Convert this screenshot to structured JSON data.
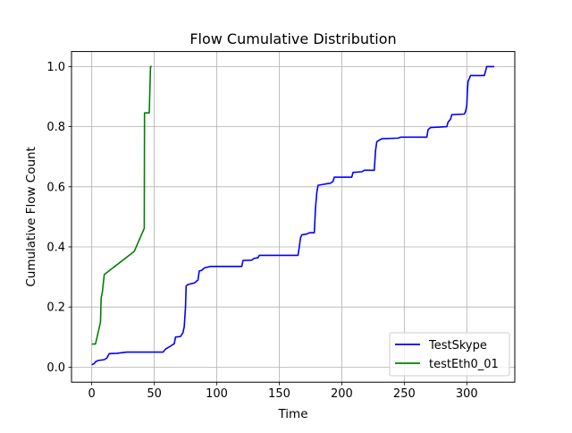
{
  "chart_data": {
    "type": "line",
    "title": "Flow Cumulative Distribution",
    "xlabel": "Time",
    "ylabel": "Cumulative Flow Count",
    "xlim": [
      -16.2,
      338.4
    ],
    "ylim": [
      -0.05,
      1.05
    ],
    "xticks": [
      0,
      50,
      100,
      150,
      200,
      250,
      300
    ],
    "yticks": [
      0.0,
      0.2,
      0.4,
      0.6,
      0.8,
      1.0
    ],
    "xtick_labels": [
      "0",
      "50",
      "100",
      "150",
      "200",
      "250",
      "300"
    ],
    "ytick_labels": [
      "0.0",
      "0.2",
      "0.4",
      "0.6",
      "0.8",
      "1.0"
    ],
    "grid": true,
    "legend_position": "lower right",
    "series": [
      {
        "name": "TestSkype",
        "color": "#0000ff",
        "points": [
          [
            0,
            0.008
          ],
          [
            2,
            0.012
          ],
          [
            3,
            0.018
          ],
          [
            5,
            0.022
          ],
          [
            10,
            0.025
          ],
          [
            12,
            0.03
          ],
          [
            14,
            0.045
          ],
          [
            20,
            0.046
          ],
          [
            28,
            0.05
          ],
          [
            57,
            0.05
          ],
          [
            59,
            0.06
          ],
          [
            61,
            0.065
          ],
          [
            63,
            0.07
          ],
          [
            66,
            0.078
          ],
          [
            67,
            0.1
          ],
          [
            71,
            0.102
          ],
          [
            73,
            0.115
          ],
          [
            74,
            0.135
          ],
          [
            75,
            0.2
          ],
          [
            75.5,
            0.27
          ],
          [
            77,
            0.275
          ],
          [
            82,
            0.28
          ],
          [
            85,
            0.29
          ],
          [
            86,
            0.32
          ],
          [
            88,
            0.322
          ],
          [
            90,
            0.33
          ],
          [
            95,
            0.335
          ],
          [
            120,
            0.335
          ],
          [
            121,
            0.355
          ],
          [
            128,
            0.356
          ],
          [
            130,
            0.362
          ],
          [
            133,
            0.364
          ],
          [
            134,
            0.372
          ],
          [
            165,
            0.372
          ],
          [
            166,
            0.4
          ],
          [
            167,
            0.43
          ],
          [
            168,
            0.44
          ],
          [
            172,
            0.443
          ],
          [
            174,
            0.447
          ],
          [
            178,
            0.447
          ],
          [
            179,
            0.53
          ],
          [
            180,
            0.58
          ],
          [
            181,
            0.605
          ],
          [
            185,
            0.608
          ],
          [
            188,
            0.61
          ],
          [
            191,
            0.612
          ],
          [
            193,
            0.618
          ],
          [
            194,
            0.632
          ],
          [
            208,
            0.632
          ],
          [
            209,
            0.648
          ],
          [
            216,
            0.65
          ],
          [
            218,
            0.655
          ],
          [
            226,
            0.655
          ],
          [
            227,
            0.72
          ],
          [
            228,
            0.75
          ],
          [
            230,
            0.755
          ],
          [
            232,
            0.76
          ],
          [
            245,
            0.762
          ],
          [
            247,
            0.765
          ],
          [
            268,
            0.765
          ],
          [
            269,
            0.79
          ],
          [
            271,
            0.797
          ],
          [
            284,
            0.8
          ],
          [
            285,
            0.815
          ],
          [
            287,
            0.825
          ],
          [
            288,
            0.84
          ],
          [
            298,
            0.842
          ],
          [
            299,
            0.85
          ],
          [
            300,
            0.87
          ],
          [
            300.5,
            0.92
          ],
          [
            301,
            0.95
          ],
          [
            302,
            0.96
          ],
          [
            303,
            0.97
          ],
          [
            314,
            0.97
          ],
          [
            315,
            0.985
          ],
          [
            316,
            1.0
          ],
          [
            322,
            1.0
          ]
        ]
      },
      {
        "name": "testEth0_01",
        "color": "#008000",
        "points": [
          [
            0,
            0.077
          ],
          [
            3,
            0.077
          ],
          [
            7,
            0.15
          ],
          [
            7.5,
            0.23
          ],
          [
            8.5,
            0.25
          ],
          [
            10,
            0.308
          ],
          [
            34,
            0.385
          ],
          [
            42,
            0.462
          ],
          [
            42.2,
            0.846
          ],
          [
            46,
            0.846
          ],
          [
            46.5,
            0.923
          ],
          [
            47,
            1.0
          ],
          [
            48,
            1.0
          ]
        ]
      }
    ]
  }
}
